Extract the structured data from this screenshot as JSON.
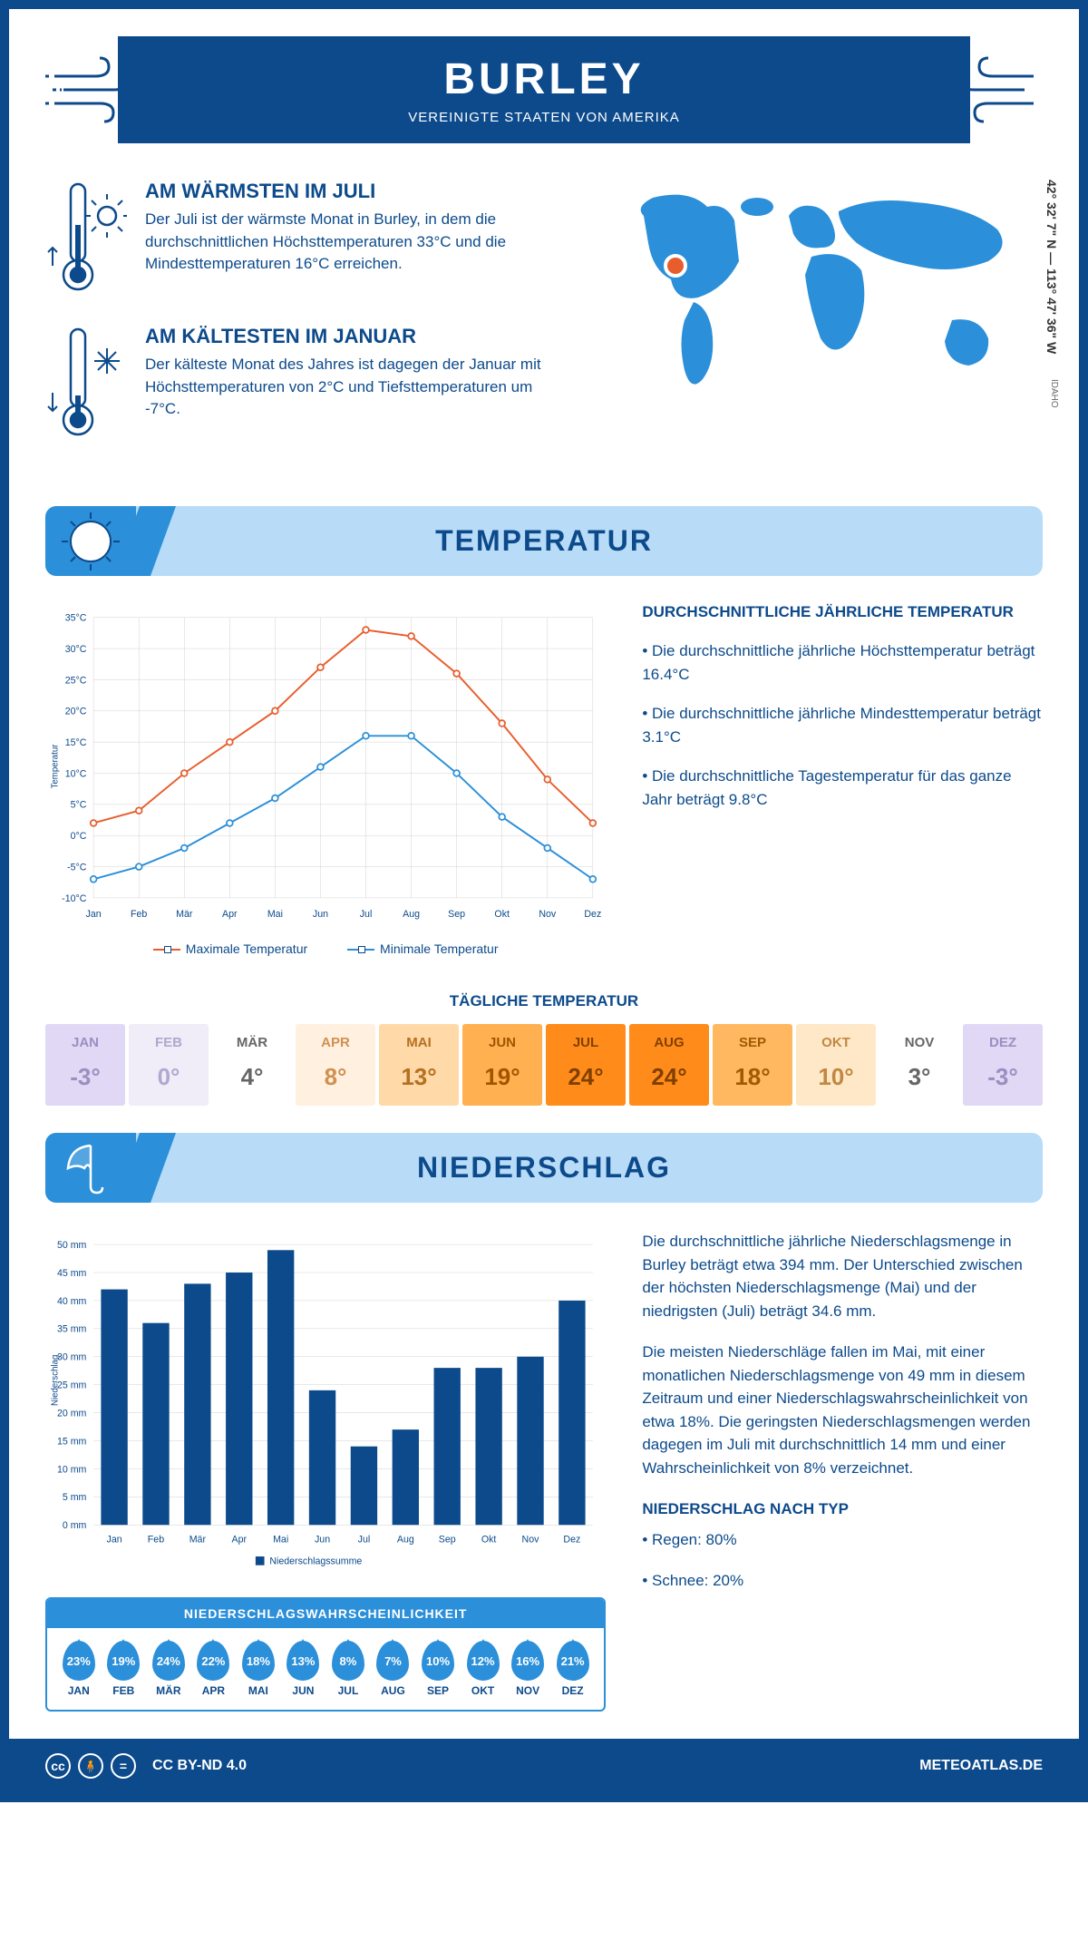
{
  "header": {
    "city": "BURLEY",
    "country": "VEREINIGTE STAATEN VON AMERIKA"
  },
  "coords": "42° 32' 7\" N — 113° 47' 36\" W",
  "state": "IDAHO",
  "warmest": {
    "title": "AM WÄRMSTEN IM JULI",
    "body": "Der Juli ist der wärmste Monat in Burley, in dem die durchschnittlichen Höchsttemperaturen 33°C und die Mindesttemperaturen 16°C erreichen."
  },
  "coldest": {
    "title": "AM KÄLTESTEN IM JANUAR",
    "body": "Der kälteste Monat des Jahres ist dagegen der Januar mit Höchsttemperaturen von 2°C und Tiefsttemperaturen um -7°C."
  },
  "temp_section": {
    "title": "TEMPERATUR",
    "annual_title": "DURCHSCHNITTLICHE JÄHRLICHE TEMPERATUR",
    "bullet1": "• Die durchschnittliche jährliche Höchsttemperatur beträgt 16.4°C",
    "bullet2": "• Die durchschnittliche jährliche Mindesttemperatur beträgt 3.1°C",
    "bullet3": "• Die durchschnittliche Tagestemperatur für das ganze Jahr beträgt 9.8°C",
    "legend_max": "Maximale Temperatur",
    "legend_min": "Minimale Temperatur",
    "daily_title": "TÄGLICHE TEMPERATUR",
    "chart": {
      "months": [
        "Jan",
        "Feb",
        "Mär",
        "Apr",
        "Mai",
        "Jun",
        "Jul",
        "Aug",
        "Sep",
        "Okt",
        "Nov",
        "Dez"
      ],
      "max_series": [
        2,
        4,
        10,
        15,
        20,
        27,
        33,
        32,
        26,
        18,
        9,
        2
      ],
      "min_series": [
        -7,
        -5,
        -2,
        2,
        6,
        11,
        16,
        16,
        10,
        3,
        -2,
        -7
      ],
      "max_color": "#e85d2c",
      "min_color": "#2b8fd9",
      "y_min": -10,
      "y_max": 35,
      "y_step": 5,
      "y_axis_title": "Temperatur",
      "grid_color": "#d0d0d0"
    },
    "daily_cells": [
      {
        "mon": "JAN",
        "val": "-3°",
        "bg": "#e0d8f5",
        "fg": "#9a8fc0"
      },
      {
        "mon": "FEB",
        "val": "0°",
        "bg": "#f0ecf8",
        "fg": "#b0a8d0"
      },
      {
        "mon": "MÄR",
        "val": "4°",
        "bg": "#ffffff",
        "fg": "#666666"
      },
      {
        "mon": "APR",
        "val": "8°",
        "bg": "#fff0e0",
        "fg": "#d09050"
      },
      {
        "mon": "MAI",
        "val": "13°",
        "bg": "#ffd9a8",
        "fg": "#b57020"
      },
      {
        "mon": "JUN",
        "val": "19°",
        "bg": "#ffb050",
        "fg": "#a05500"
      },
      {
        "mon": "JUL",
        "val": "24°",
        "bg": "#ff8c1a",
        "fg": "#803f00"
      },
      {
        "mon": "AUG",
        "val": "24°",
        "bg": "#ff8c1a",
        "fg": "#803f00"
      },
      {
        "mon": "SEP",
        "val": "18°",
        "bg": "#ffb860",
        "fg": "#a05a00"
      },
      {
        "mon": "OKT",
        "val": "10°",
        "bg": "#ffe8c8",
        "fg": "#c08840"
      },
      {
        "mon": "NOV",
        "val": "3°",
        "bg": "#ffffff",
        "fg": "#666666"
      },
      {
        "mon": "DEZ",
        "val": "-3°",
        "bg": "#e0d8f5",
        "fg": "#9a8fc0"
      }
    ]
  },
  "precip_section": {
    "title": "NIEDERSCHLAG",
    "chart": {
      "months": [
        "Jan",
        "Feb",
        "Mär",
        "Apr",
        "Mai",
        "Jun",
        "Jul",
        "Aug",
        "Sep",
        "Okt",
        "Nov",
        "Dez"
      ],
      "values": [
        42,
        36,
        43,
        45,
        49,
        24,
        14,
        17,
        28,
        28,
        30,
        40
      ],
      "y_min": 0,
      "y_max": 50,
      "y_step": 5,
      "bar_color": "#0c4a8b",
      "y_axis_title": "Niederschlag",
      "legend": "Niederschlagssumme"
    },
    "prob_title": "NIEDERSCHLAGSWAHRSCHEINLICHKEIT",
    "prob": [
      {
        "mon": "JAN",
        "val": "23%"
      },
      {
        "mon": "FEB",
        "val": "19%"
      },
      {
        "mon": "MÄR",
        "val": "24%"
      },
      {
        "mon": "APR",
        "val": "22%"
      },
      {
        "mon": "MAI",
        "val": "18%"
      },
      {
        "mon": "JUN",
        "val": "13%"
      },
      {
        "mon": "JUL",
        "val": "8%"
      },
      {
        "mon": "AUG",
        "val": "7%"
      },
      {
        "mon": "SEP",
        "val": "10%"
      },
      {
        "mon": "OKT",
        "val": "12%"
      },
      {
        "mon": "NOV",
        "val": "16%"
      },
      {
        "mon": "DEZ",
        "val": "21%"
      }
    ],
    "para1": "Die durchschnittliche jährliche Niederschlagsmenge in Burley beträgt etwa 394 mm. Der Unterschied zwischen der höchsten Niederschlagsmenge (Mai) und der niedrigsten (Juli) beträgt 34.6 mm.",
    "para2": "Die meisten Niederschläge fallen im Mai, mit einer monatlichen Niederschlagsmenge von 49 mm in diesem Zeitraum und einer Niederschlagswahrscheinlichkeit von etwa 18%. Die geringsten Niederschlagsmengen werden dagegen im Juli mit durchschnittlich 14 mm und einer Wahrscheinlichkeit von 8% verzeichnet.",
    "type_title": "NIEDERSCHLAG NACH TYP",
    "type1": "• Regen: 80%",
    "type2": "• Schnee: 20%"
  },
  "footer": {
    "license": "CC BY-ND 4.0",
    "site": "METEOATLAS.DE"
  },
  "colors": {
    "primary": "#0c4a8b",
    "accent": "#2b8fd9",
    "banner_bg": "#b8dcf7"
  }
}
